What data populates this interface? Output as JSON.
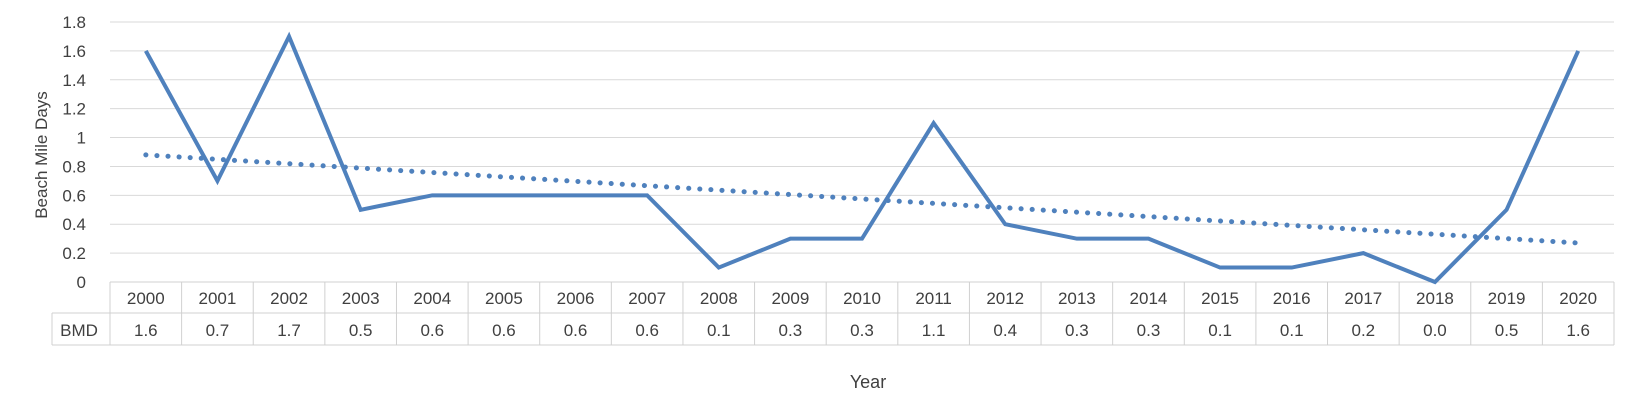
{
  "chart_data": {
    "type": "line",
    "title": "",
    "xlabel": "Year",
    "ylabel": "Beach Mile Days",
    "ylim": [
      0,
      1.8
    ],
    "yticks": [
      "0",
      "0.2",
      "0.4",
      "0.6",
      "0.8",
      "1",
      "1.2",
      "1.4",
      "1.6",
      "1.8"
    ],
    "grid": true,
    "legend": "none",
    "categories": [
      "2000",
      "2001",
      "2002",
      "2003",
      "2004",
      "2005",
      "2006",
      "2007",
      "2008",
      "2009",
      "2010",
      "2011",
      "2012",
      "2013",
      "2014",
      "2015",
      "2016",
      "2017",
      "2018",
      "2019",
      "2020"
    ],
    "series": [
      {
        "name": "BMD",
        "values": [
          1.6,
          0.7,
          1.7,
          0.5,
          0.6,
          0.6,
          0.6,
          0.6,
          0.1,
          0.3,
          0.3,
          1.1,
          0.4,
          0.3,
          0.3,
          0.1,
          0.1,
          0.2,
          0.0,
          0.5,
          1.6
        ],
        "labels": [
          "1.6",
          "0.7",
          "1.7",
          "0.5",
          "0.6",
          "0.6",
          "0.6",
          "0.6",
          "0.1",
          "0.3",
          "0.3",
          "1.1",
          "0.4",
          "0.3",
          "0.3",
          "0.1",
          "0.1",
          "0.2",
          "0.0",
          "0.5",
          "1.6"
        ],
        "color": "#4f81bd"
      }
    ],
    "trendline": {
      "type": "linear",
      "style": "dotted",
      "start": 0.88,
      "end": 0.27,
      "color": "#4f81bd"
    }
  },
  "colors": {
    "grid": "#d9d9d9",
    "table_border": "#d0d0d0",
    "text": "#404040"
  }
}
